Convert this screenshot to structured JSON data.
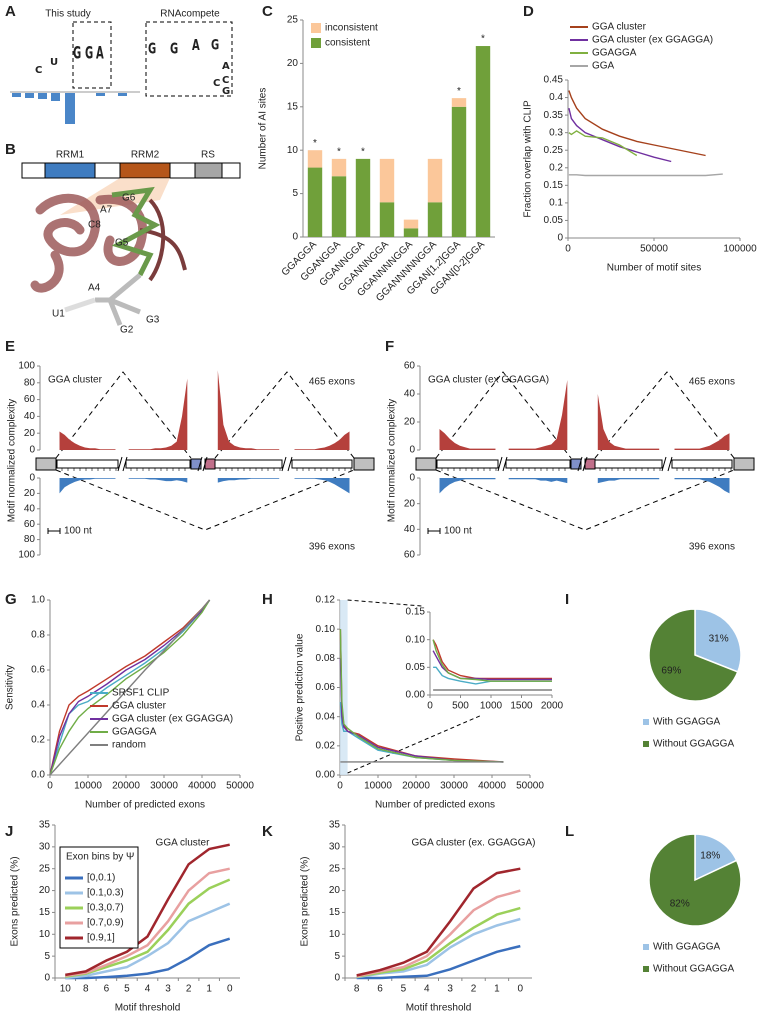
{
  "panel_labels": [
    "A",
    "B",
    "C",
    "D",
    "E",
    "F",
    "G",
    "H",
    "I",
    "J",
    "K",
    "L"
  ],
  "logo": {
    "study_label": "This study",
    "study_letters": [
      "C",
      "U",
      "G",
      "G",
      "A"
    ],
    "compete_label": "RNAcompete",
    "compete_letters": [
      "G",
      "G",
      "A",
      "G",
      "C",
      "A",
      "C",
      "G"
    ]
  },
  "structure": {
    "domains": [
      "RRM1",
      "RRM2",
      "RS"
    ],
    "residues": [
      "G6",
      "A7",
      "C8",
      "G5",
      "A4",
      "U1",
      "G2",
      "G3"
    ]
  },
  "chart_data": [
    {
      "type": "bar",
      "stacked": true,
      "ylabel": "Number of AI sites",
      "categories": [
        "GGAGGA",
        "GGANGGA",
        "GGANNGGA",
        "GGANNNGGA",
        "GGANNNNGGA",
        "GGANNNNNGGA",
        "GGAN[1,2]GGA",
        "GGAN[0-2]GGA"
      ],
      "series": [
        {
          "name": "consistent",
          "color": "#70a03a",
          "values": [
            8,
            7,
            9,
            4,
            1,
            4,
            15,
            22
          ]
        },
        {
          "name": "inconsistent",
          "color": "#fbc79a",
          "values": [
            2,
            2,
            0,
            5,
            1,
            5,
            1,
            0
          ]
        }
      ],
      "significant": [
        true,
        true,
        true,
        false,
        false,
        false,
        true,
        true
      ],
      "marker": "*",
      "ylim": [
        0,
        25
      ],
      "yticks": [
        0,
        5,
        10,
        15,
        20,
        25
      ],
      "legend": "upper left"
    },
    {
      "type": "line",
      "ylabel": "Fraction overlap with CLIP",
      "xlabel": "Number of motif sites",
      "series": [
        {
          "name": "GGA cluster",
          "color": "#a5411c",
          "x": [
            500,
            2000,
            5000,
            10000,
            20000,
            30000,
            40000,
            50000,
            60000,
            70000,
            80000
          ],
          "values": [
            0.42,
            0.4,
            0.37,
            0.34,
            0.31,
            0.29,
            0.275,
            0.265,
            0.255,
            0.245,
            0.235
          ]
        },
        {
          "name": "GGA cluster (ex GGAGGA)",
          "color": "#7030a0",
          "x": [
            500,
            2000,
            5000,
            10000,
            20000,
            30000,
            40000,
            50000,
            60000
          ],
          "values": [
            0.37,
            0.34,
            0.32,
            0.3,
            0.28,
            0.26,
            0.245,
            0.23,
            0.218
          ]
        },
        {
          "name": "GGAGGA",
          "color": "#80b040",
          "x": [
            500,
            2000,
            5000,
            10000,
            20000,
            30000,
            40000
          ],
          "values": [
            0.3,
            0.295,
            0.305,
            0.29,
            0.285,
            0.265,
            0.235
          ]
        },
        {
          "name": "GGA",
          "color": "#a6a6a6",
          "x": [
            500,
            5000,
            10000,
            20000,
            40000,
            60000,
            80000,
            90000
          ],
          "values": [
            0.18,
            0.18,
            0.178,
            0.178,
            0.178,
            0.178,
            0.178,
            0.182
          ]
        }
      ],
      "xlim": [
        0,
        100000
      ],
      "xticks": [
        0,
        50000,
        100000
      ],
      "ylim": [
        0,
        0.45
      ],
      "yticks": [
        0,
        0.05,
        0.1,
        0.15,
        0.2,
        0.25,
        0.3,
        0.35,
        0.4,
        0.45
      ],
      "legend": "top"
    },
    {
      "type": "mirrored_area",
      "title": "GGA cluster",
      "ylabel": "Motif normalized complexity",
      "scale_label": "100 nt",
      "series": [
        {
          "name": "465 exons",
          "color": "#b5403c",
          "values": [
            22,
            18,
            12,
            8,
            5,
            3,
            2,
            2,
            1,
            1,
            1,
            1,
            1,
            1,
            1,
            1,
            1,
            2,
            2,
            3,
            5,
            10,
            40,
            85,
            95,
            30,
            10,
            5,
            3,
            2,
            2,
            1,
            1,
            1,
            1,
            1,
            1,
            1,
            1,
            1,
            1,
            2,
            3,
            5,
            8,
            12,
            18,
            22
          ]
        },
        {
          "name": "396 exons",
          "color": "#3f7cc0",
          "values": [
            20,
            12,
            8,
            5,
            3,
            2,
            2,
            1,
            1,
            1,
            1,
            1,
            1,
            1,
            1,
            1,
            2,
            2,
            3,
            4,
            4,
            3,
            4,
            6,
            6,
            4,
            3,
            3,
            2,
            2,
            1,
            1,
            1,
            1,
            1,
            1,
            1,
            1,
            1,
            1,
            1,
            2,
            3,
            5,
            8,
            12,
            16,
            20
          ]
        }
      ],
      "ylim": [
        0,
        100
      ],
      "yticks": [
        0,
        20,
        40,
        60,
        80,
        100
      ]
    },
    {
      "type": "mirrored_area",
      "title": "GGA cluster (ex GGAGGA)",
      "ylabel": "Motif normalized complexity",
      "scale_label": "100 nt",
      "series": [
        {
          "name": "465 exons",
          "color": "#b5403c",
          "values": [
            15,
            12,
            8,
            5,
            3,
            2,
            1,
            1,
            1,
            1,
            1,
            1,
            1,
            1,
            1,
            1,
            1,
            1,
            2,
            3,
            4,
            8,
            25,
            50,
            40,
            15,
            6,
            3,
            2,
            1,
            1,
            1,
            1,
            1,
            1,
            1,
            1,
            1,
            1,
            1,
            1,
            1,
            2,
            3,
            5,
            7,
            10,
            12
          ]
        },
        {
          "name": "396 exons",
          "color": "#3f7cc0",
          "values": [
            12,
            8,
            5,
            3,
            2,
            1,
            1,
            1,
            1,
            1,
            1,
            1,
            1,
            1,
            1,
            1,
            1,
            1,
            2,
            2,
            3,
            2,
            3,
            4,
            4,
            3,
            2,
            2,
            1,
            1,
            1,
            1,
            1,
            1,
            1,
            1,
            1,
            1,
            1,
            1,
            1,
            1,
            2,
            3,
            5,
            7,
            10,
            12
          ]
        }
      ],
      "ylim": [
        0,
        60
      ],
      "yticks": [
        0,
        20,
        40,
        60
      ]
    },
    {
      "type": "line",
      "ylabel": "Sensitivity",
      "xlabel": "Number of predicted exons",
      "x": [
        0,
        2500,
        5000,
        7500,
        10000,
        15000,
        20000,
        25000,
        30000,
        35000,
        40000,
        42000
      ],
      "series": [
        {
          "name": "SRSF1 CLIP",
          "color": "#4bacc6",
          "values": [
            0,
            0.18,
            0.35,
            0.4,
            0.42,
            0.5,
            0.57,
            0.64,
            0.72,
            0.82,
            0.94,
            1
          ]
        },
        {
          "name": "GGA cluster",
          "color": "#c0392b",
          "values": [
            0,
            0.25,
            0.4,
            0.45,
            0.48,
            0.55,
            0.62,
            0.68,
            0.76,
            0.84,
            0.95,
            1
          ]
        },
        {
          "name": "GGA cluster (ex GGAGGA)",
          "color": "#7030a0",
          "values": [
            0,
            0.22,
            0.35,
            0.42,
            0.45,
            0.52,
            0.6,
            0.66,
            0.74,
            0.83,
            0.94,
            1
          ]
        },
        {
          "name": "GGAGGA",
          "color": "#70ad47",
          "values": [
            0,
            0.15,
            0.25,
            0.33,
            0.38,
            0.46,
            0.55,
            0.62,
            0.7,
            0.8,
            0.93,
            1
          ]
        },
        {
          "name": "random",
          "color": "#7f7f7f",
          "values": [
            0,
            0.06,
            0.12,
            0.18,
            0.24,
            0.36,
            0.48,
            0.6,
            0.71,
            0.83,
            0.95,
            1
          ]
        }
      ],
      "xlim": [
        0,
        50000
      ],
      "xticks": [
        0,
        10000,
        20000,
        30000,
        40000,
        50000
      ],
      "ylim": [
        0,
        1
      ],
      "yticks": [
        {
          "value": 0,
          "label": "0.0"
        },
        0.2,
        0.4,
        0.6,
        0.8,
        {
          "value": 1,
          "label": "1.0"
        }
      ],
      "legend": "lower right"
    },
    {
      "type": "line",
      "ylabel": "Positive prediction value",
      "xlabel": "Number of predicted exons",
      "x": [
        100,
        500,
        1000,
        2000,
        5000,
        10000,
        20000,
        30000,
        43000
      ],
      "series": [
        {
          "color": "#4bacc6",
          "values": [
            0.05,
            0.035,
            0.03,
            0.03,
            0.025,
            0.017,
            0.012,
            0.01,
            0.009
          ]
        },
        {
          "color": "#c0392b",
          "values": [
            0.1,
            0.045,
            0.035,
            0.03,
            0.028,
            0.02,
            0.013,
            0.011,
            0.009
          ]
        },
        {
          "color": "#7030a0",
          "values": [
            0.08,
            0.04,
            0.033,
            0.03,
            0.027,
            0.019,
            0.013,
            0.01,
            0.009
          ]
        },
        {
          "color": "#70ad47",
          "values": [
            0.1,
            0.05,
            0.035,
            0.032,
            0.026,
            0.018,
            0.012,
            0.01,
            0.009
          ]
        },
        {
          "color": "#7f7f7f",
          "values": [
            0.009,
            0.009,
            0.009,
            0.009,
            0.009,
            0.009,
            0.009,
            0.009,
            0.009
          ]
        }
      ],
      "xlim": [
        0,
        50000
      ],
      "xticks": [
        0,
        10000,
        20000,
        30000,
        40000,
        50000
      ],
      "ylim": [
        0,
        0.12
      ],
      "yticks": [
        {
          "value": 0,
          "label": "0.00"
        },
        0.02,
        0.04,
        0.06,
        0.08,
        {
          "value": 0.1,
          "label": "0.10"
        },
        0.12
      ]
    },
    {
      "type": "line",
      "x": [
        50,
        100,
        200,
        300,
        500,
        750,
        1000,
        1500,
        2000
      ],
      "series": [
        {
          "color": "#4bacc6",
          "values": [
            0.05,
            0.05,
            0.035,
            0.03,
            0.025,
            0.02,
            0.025,
            0.025,
            0.025
          ]
        },
        {
          "color": "#c0392b",
          "values": [
            0.1,
            0.09,
            0.06,
            0.045,
            0.035,
            0.03,
            0.03,
            0.03,
            0.03
          ]
        },
        {
          "color": "#7030a0",
          "values": [
            0.08,
            0.07,
            0.05,
            0.04,
            0.03,
            0.03,
            0.028,
            0.028,
            0.028
          ]
        },
        {
          "color": "#70ad47",
          "values": [
            0.1,
            0.08,
            0.055,
            0.04,
            0.03,
            0.028,
            0.025,
            0.025,
            0.025
          ]
        },
        {
          "color": "#7f7f7f",
          "values": [
            0.009,
            0.009,
            0.009,
            0.009,
            0.009,
            0.009,
            0.009,
            0.009,
            0.009
          ]
        }
      ],
      "xlim": [
        0,
        2000
      ],
      "xticks": [
        0,
        500,
        1000,
        1500,
        2000
      ],
      "ylim": [
        0,
        0.15
      ],
      "yticks": [
        {
          "value": 0,
          "label": "0.00"
        },
        0.05,
        {
          "value": 0.1,
          "label": "0.10"
        },
        0.15
      ]
    },
    {
      "type": "pie",
      "categories": [
        "With GGAGGA",
        "Without GGAGGA"
      ],
      "values": [
        31,
        69
      ],
      "value_labels": [
        "31%",
        "69%"
      ],
      "colors": [
        "#9dc3e6",
        "#548235"
      ]
    },
    {
      "type": "line",
      "title": "GGA cluster",
      "ylabel": "Exons predicted (%)",
      "xlabel": "Motif threshold",
      "categories": [
        "10",
        "8",
        "6",
        "5",
        "4",
        "3",
        "2",
        "1",
        "0"
      ],
      "series": [
        {
          "name": "[0,0.1)",
          "color": "#3a6fbd",
          "values": [
            0,
            0,
            0.2,
            0.5,
            1,
            2,
            4.5,
            7.5,
            9
          ]
        },
        {
          "name": "[0.1,0.3)",
          "color": "#9dc3e6",
          "values": [
            0,
            0.5,
            1.5,
            2.5,
            5,
            8,
            13,
            15,
            17
          ]
        },
        {
          "name": "[0.3,0.7)",
          "color": "#9bd05a",
          "values": [
            0.3,
            1,
            2.5,
            4,
            6,
            11,
            17,
            20.5,
            22.5
          ]
        },
        {
          "name": "[0.7,0.9)",
          "color": "#e8a0a0",
          "values": [
            0.5,
            1.2,
            3,
            5,
            7.5,
            13,
            20,
            24,
            25
          ]
        },
        {
          "name": "[0.9,1]",
          "color": "#a0262d",
          "values": [
            0.7,
            1.5,
            4,
            6,
            9.5,
            18,
            26,
            29.5,
            30.5
          ]
        }
      ],
      "ylim": [
        0,
        35
      ],
      "yticks": [
        0,
        5,
        10,
        15,
        20,
        25,
        30,
        35
      ],
      "legend": "upper left",
      "legend_title": "Exon bins by Ψ"
    },
    {
      "type": "line",
      "title": "GGA cluster (ex. GGAGGA)",
      "ylabel": "Exons predicted (%)",
      "xlabel": "Motif threshold",
      "categories": [
        "8",
        "6",
        "5",
        "4",
        "3",
        "2",
        "1",
        "0"
      ],
      "series": [
        {
          "color": "#3a6fbd",
          "values": [
            0,
            0,
            0.3,
            0.5,
            2,
            4,
            6,
            7.3
          ]
        },
        {
          "color": "#9dc3e6",
          "values": [
            0.2,
            1,
            1.5,
            3,
            7,
            10,
            12,
            13.5
          ]
        },
        {
          "color": "#9bd05a",
          "values": [
            0.3,
            1.2,
            2,
            4,
            8,
            11.5,
            14.5,
            16
          ]
        },
        {
          "color": "#e8a0a0",
          "values": [
            0.4,
            1.5,
            2.5,
            5,
            10,
            15.5,
            18.5,
            20
          ]
        },
        {
          "color": "#a0262d",
          "values": [
            0.6,
            1.8,
            3.5,
            6,
            13,
            20.5,
            24,
            25
          ]
        }
      ],
      "ylim": [
        0,
        35
      ],
      "yticks": [
        0,
        5,
        10,
        15,
        20,
        25,
        30,
        35
      ]
    },
    {
      "type": "pie",
      "categories": [
        "With GGAGGA",
        "Without GGAGGA"
      ],
      "values": [
        18,
        82
      ],
      "value_labels": [
        "18%",
        "82%"
      ],
      "colors": [
        "#9dc3e6",
        "#548235"
      ]
    }
  ]
}
